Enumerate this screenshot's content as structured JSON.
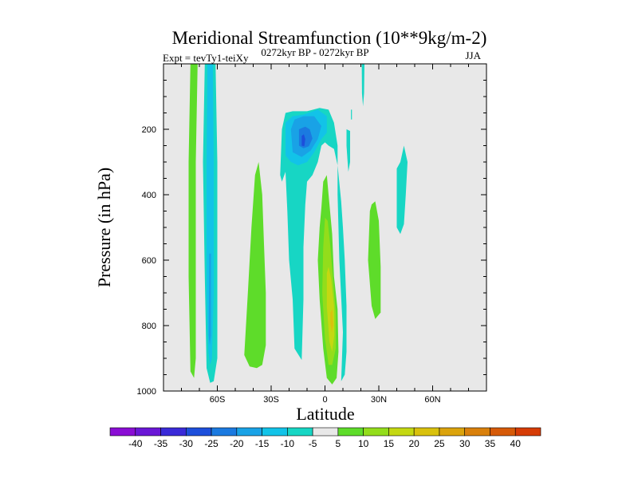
{
  "chart_data": {
    "type": "contour",
    "title": "Meridional Streamfunction (10**9kg/m-2)",
    "subtitle": "0272kyr BP - 0272kyr BP",
    "left_label": "Expt = tevTy1-teiXy",
    "right_label": "JJA",
    "xlabel": "Latitude",
    "ylabel": "Pressure (in hPa)",
    "xlim": [
      -90,
      90
    ],
    "ylim": [
      1000,
      0
    ],
    "y_inverted": true,
    "x_ticks": [
      {
        "value": -60,
        "label": "60S"
      },
      {
        "value": -30,
        "label": "30S"
      },
      {
        "value": 0,
        "label": "0"
      },
      {
        "value": 30,
        "label": "30N"
      },
      {
        "value": 60,
        "label": "60N"
      }
    ],
    "y_ticks": [
      {
        "value": 200,
        "label": "200"
      },
      {
        "value": 400,
        "label": "400"
      },
      {
        "value": 600,
        "label": "600"
      },
      {
        "value": 800,
        "label": "800"
      },
      {
        "value": 1000,
        "label": "1000"
      }
    ],
    "background_color": "#e8e8e8",
    "colorbar": {
      "orientation": "horizontal",
      "levels": [
        -40,
        -35,
        -30,
        -25,
        -20,
        -15,
        -10,
        -5,
        5,
        10,
        15,
        20,
        25,
        30,
        35,
        40
      ],
      "colors": [
        "#8a0dd4",
        "#6a17d6",
        "#3a2ad8",
        "#1d4fdb",
        "#1b7ae0",
        "#19a2e6",
        "#12c3e8",
        "#17d6c4",
        "#e8e8e8",
        "#5edc2a",
        "#93dd1b",
        "#c4d812",
        "#d9c10d",
        "#dba30c",
        "#d9800b",
        "#d65a08",
        "#d63c06"
      ]
    },
    "regions": [
      {
        "name": "green-band-60s",
        "level": 5,
        "color": "#5edc2a",
        "points": [
          [
            -75,
            0
          ],
          [
            -71,
            0
          ],
          [
            -72,
            300
          ],
          [
            -72,
            650
          ],
          [
            -72,
            900
          ],
          [
            -73,
            960
          ],
          [
            -75,
            940
          ],
          [
            -76,
            650
          ],
          [
            -76,
            300
          ]
        ]
      },
      {
        "name": "cyan-band-60s",
        "level": -5,
        "color": "#17d6c4",
        "points": [
          [
            -67,
            0
          ],
          [
            -61,
            0
          ],
          [
            -60,
            300
          ],
          [
            -60,
            650
          ],
          [
            -60,
            900
          ],
          [
            -62,
            970
          ],
          [
            -64,
            975
          ],
          [
            -66,
            930
          ],
          [
            -67,
            650
          ],
          [
            -68,
            300
          ]
        ]
      },
      {
        "name": "lightblue-core-60s",
        "level": -10,
        "color": "#12c3e8",
        "points": [
          [
            -65.5,
            0
          ],
          [
            -62.5,
            0
          ],
          [
            -62,
            300
          ],
          [
            -62,
            700
          ],
          [
            -63,
            900
          ],
          [
            -64,
            920
          ],
          [
            -65,
            880
          ],
          [
            -66,
            700
          ],
          [
            -66,
            300
          ]
        ]
      },
      {
        "name": "blue-core-60s",
        "level": -15,
        "color": "#19a2e6",
        "points": [
          [
            -64.5,
            580
          ],
          [
            -63.5,
            580
          ],
          [
            -63.5,
            830
          ],
          [
            -64.2,
            860
          ],
          [
            -64.8,
            830
          ]
        ]
      },
      {
        "name": "green-blob-40s",
        "level": 5,
        "color": "#5edc2a",
        "points": [
          [
            -45,
            890
          ],
          [
            -43,
            700
          ],
          [
            -41,
            500
          ],
          [
            -39,
            340
          ],
          [
            -37,
            300
          ],
          [
            -35,
            400
          ],
          [
            -34,
            550
          ],
          [
            -33,
            700
          ],
          [
            -33,
            860
          ],
          [
            -35,
            920
          ],
          [
            -38,
            930
          ],
          [
            -42,
            925
          ]
        ]
      },
      {
        "name": "cyan-upper-eq",
        "level": -5,
        "color": "#17d6c4",
        "points": [
          [
            -24,
            200
          ],
          [
            -25,
            340
          ],
          [
            -24,
            360
          ],
          [
            -22,
            330
          ],
          [
            -21,
            450
          ],
          [
            -20,
            600
          ],
          [
            -18,
            720
          ],
          [
            -17,
            870
          ],
          [
            -13,
            905
          ],
          [
            -12,
            720
          ],
          [
            -12,
            560
          ],
          [
            -11,
            430
          ],
          [
            -10,
            360
          ],
          [
            -7,
            340
          ],
          [
            -4,
            300
          ],
          [
            -2,
            250
          ],
          [
            0,
            240
          ],
          [
            2,
            250
          ],
          [
            5,
            260
          ],
          [
            7,
            310
          ],
          [
            9,
            420
          ],
          [
            10,
            500
          ],
          [
            11,
            600
          ],
          [
            12,
            740
          ],
          [
            12,
            880
          ],
          [
            11,
            950
          ],
          [
            9,
            970
          ],
          [
            10,
            820
          ],
          [
            8,
            600
          ],
          [
            7,
            400
          ],
          [
            7,
            250
          ],
          [
            5,
            180
          ],
          [
            2,
            140
          ],
          [
            -3,
            135
          ],
          [
            -10,
            145
          ],
          [
            -18,
            145
          ],
          [
            -22,
            150
          ]
        ]
      },
      {
        "name": "blue-upper-eq",
        "level": -10,
        "color": "#12c3e8",
        "points": [
          [
            -22,
            180
          ],
          [
            -22,
            280
          ],
          [
            -19,
            300
          ],
          [
            -15,
            310
          ],
          [
            -10,
            300
          ],
          [
            -6,
            270
          ],
          [
            -2,
            230
          ],
          [
            1,
            210
          ],
          [
            1,
            160
          ],
          [
            -4,
            140
          ],
          [
            -12,
            155
          ],
          [
            -18,
            160
          ]
        ]
      },
      {
        "name": "bluer-upper-eq",
        "level": -15,
        "color": "#19a2e6",
        "points": [
          [
            -19,
            200
          ],
          [
            -18,
            270
          ],
          [
            -13,
            285
          ],
          [
            -8,
            265
          ],
          [
            -4,
            230
          ],
          [
            -2,
            190
          ],
          [
            -6,
            160
          ],
          [
            -12,
            160
          ],
          [
            -17,
            170
          ]
        ]
      },
      {
        "name": "deep-blue-upper-eq",
        "level": -20,
        "color": "#1b7ae0",
        "points": [
          [
            -14.5,
            200
          ],
          [
            -14.5,
            250
          ],
          [
            -12,
            258
          ],
          [
            -9,
            252
          ],
          [
            -7,
            228
          ],
          [
            -8.5,
            200
          ],
          [
            -11,
            192
          ]
        ]
      },
      {
        "name": "darkest-blue-upper-eq",
        "level": -25,
        "color": "#1d4fdb",
        "points": [
          [
            -13,
            220
          ],
          [
            -13,
            250
          ],
          [
            -11.5,
            252
          ],
          [
            -11,
            230
          ],
          [
            -11.8,
            215
          ]
        ]
      },
      {
        "name": "green-core-eq",
        "level": 5,
        "color": "#5edc2a",
        "points": [
          [
            -3,
            500
          ],
          [
            -2,
            440
          ],
          [
            -1,
            360
          ],
          [
            1,
            340
          ],
          [
            2,
            400
          ],
          [
            4,
            520
          ],
          [
            5,
            650
          ],
          [
            7,
            750
          ],
          [
            7.5,
            880
          ],
          [
            6.5,
            960
          ],
          [
            4,
            980
          ],
          [
            1,
            960
          ],
          [
            -1,
            870
          ],
          [
            -3,
            720
          ],
          [
            -4,
            600
          ]
        ]
      },
      {
        "name": "lightgreen-core-eq",
        "level": 10,
        "color": "#93dd1b",
        "points": [
          [
            -1,
            560
          ],
          [
            0,
            470
          ],
          [
            1.5,
            480
          ],
          [
            3,
            560
          ],
          [
            4.5,
            660
          ],
          [
            6,
            760
          ],
          [
            6,
            870
          ],
          [
            4,
            920
          ],
          [
            2,
            920
          ],
          [
            0,
            840
          ],
          [
            -1.5,
            700
          ]
        ]
      },
      {
        "name": "yellow-core-eq",
        "level": 15,
        "color": "#c4d812",
        "points": [
          [
            1,
            640
          ],
          [
            2,
            620
          ],
          [
            3.5,
            660
          ],
          [
            5,
            740
          ],
          [
            5.2,
            830
          ],
          [
            4,
            880
          ],
          [
            2.5,
            850
          ],
          [
            1,
            740
          ]
        ]
      },
      {
        "name": "orange-core-eq",
        "level": 20,
        "color": "#d9c10d",
        "points": [
          [
            3,
            760
          ],
          [
            4.2,
            750
          ],
          [
            4.6,
            800
          ],
          [
            3.8,
            820
          ],
          [
            3,
            795
          ]
        ]
      },
      {
        "name": "cyan-thin-north",
        "level": -5,
        "color": "#17d6c4",
        "points": [
          [
            12,
            200
          ],
          [
            14,
            205
          ],
          [
            14,
            300
          ],
          [
            13,
            330
          ],
          [
            12.5,
            290
          ],
          [
            12,
            250
          ]
        ]
      },
      {
        "name": "cyan-speck-north",
        "level": -5,
        "color": "#17d6c4",
        "points": [
          [
            14.5,
            140
          ],
          [
            15,
            140
          ],
          [
            15,
            170
          ],
          [
            14.5,
            170
          ]
        ]
      },
      {
        "name": "green-blob-20n",
        "level": 5,
        "color": "#5edc2a",
        "points": [
          [
            25,
            450
          ],
          [
            24,
            600
          ],
          [
            26,
            740
          ],
          [
            28,
            780
          ],
          [
            31,
            760
          ],
          [
            31,
            620
          ],
          [
            30,
            480
          ],
          [
            28,
            420
          ],
          [
            26,
            430
          ]
        ]
      },
      {
        "name": "cyan-blob-40n",
        "level": -5,
        "color": "#17d6c4",
        "points": [
          [
            40,
            320
          ],
          [
            42,
            300
          ],
          [
            44,
            250
          ],
          [
            46,
            300
          ],
          [
            45,
            400
          ],
          [
            44,
            490
          ],
          [
            42,
            520
          ],
          [
            40,
            500
          ],
          [
            40,
            420
          ]
        ]
      },
      {
        "name": "cyan-top-north",
        "level": -5,
        "color": "#17d6c4",
        "points": [
          [
            20.5,
            0
          ],
          [
            22,
            0
          ],
          [
            21.8,
            90
          ],
          [
            21.2,
            130
          ],
          [
            20.6,
            90
          ]
        ]
      }
    ]
  }
}
